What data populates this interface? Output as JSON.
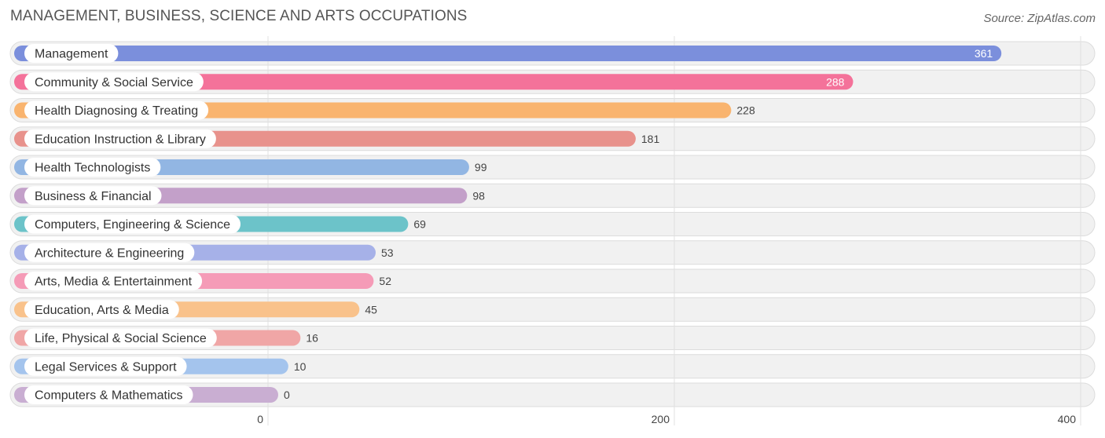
{
  "header": {
    "title": "MANAGEMENT, BUSINESS, SCIENCE AND ARTS OCCUPATIONS",
    "source": "Source: ZipAtlas.com"
  },
  "chart_data": {
    "type": "bar",
    "orientation": "horizontal",
    "title": "MANAGEMENT, BUSINESS, SCIENCE AND ARTS OCCUPATIONS",
    "xlabel": "",
    "ylabel": "",
    "xlim": [
      0,
      400
    ],
    "x_ticks": [
      0,
      200,
      400
    ],
    "x_tick_labels": [
      "0",
      "200",
      "400"
    ],
    "grid": true,
    "categories": [
      "Management",
      "Community & Social Service",
      "Health Diagnosing & Treating",
      "Education Instruction & Library",
      "Health Technologists",
      "Business & Financial",
      "Computers, Engineering & Science",
      "Architecture & Engineering",
      "Arts, Media & Entertainment",
      "Education, Arts & Media",
      "Life, Physical & Social Science",
      "Legal Services & Support",
      "Computers & Mathematics"
    ],
    "values": [
      361,
      288,
      228,
      181,
      99,
      98,
      69,
      53,
      52,
      45,
      16,
      10,
      0
    ],
    "value_labels": [
      "361",
      "288",
      "228",
      "181",
      "99",
      "98",
      "69",
      "53",
      "52",
      "45",
      "16",
      "10",
      "0"
    ],
    "colors": [
      "#7b8fdc",
      "#f4729a",
      "#f9b46f",
      "#e8928c",
      "#92b6e3",
      "#c3a0c9",
      "#6cc3c9",
      "#a6b1e8",
      "#f59bb7",
      "#f9c28b",
      "#f0a6a6",
      "#a4c4ed",
      "#c9aed2"
    ]
  }
}
